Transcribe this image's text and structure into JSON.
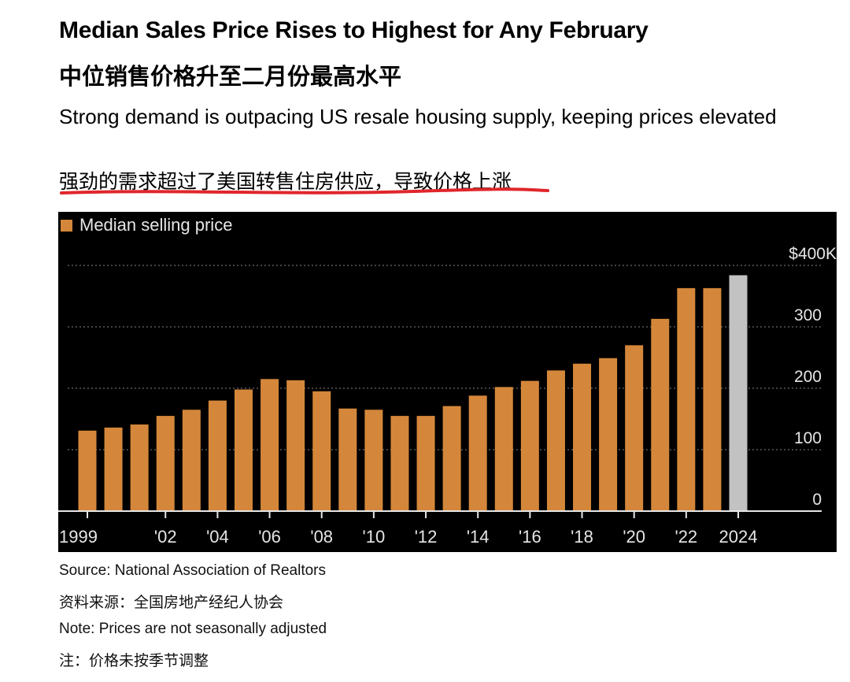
{
  "header": {
    "title": "Median Sales Price Rises to Highest for Any February",
    "title_cn": "中位销售价格升至二月份最高水平",
    "subtitle": "Strong demand is outpacing US resale housing supply, keeping prices elevated",
    "subtitle_cn": "强劲的需求超过了美国转售住房供应，导致价格上涨"
  },
  "legend": {
    "label": "Median selling price"
  },
  "colors": {
    "bar": "#d4873a",
    "bar_highlight": "#c2c2c2",
    "background": "#000000",
    "grid": "#6a6a6a",
    "text": "#e6e6e6",
    "underline": "#e0262b"
  },
  "chart_data": {
    "type": "bar",
    "title": "Median Sales Price Rises to Highest for Any February",
    "ylabel": "",
    "xlabel": "",
    "ylim": [
      0,
      400
    ],
    "yticks": [
      0,
      100,
      200,
      300,
      400
    ],
    "ytick_labels": [
      "0",
      "100",
      "200",
      "300",
      "$400K"
    ],
    "grid": true,
    "legend_position": "top-left",
    "categories": [
      "1999",
      "2000",
      "2001",
      "2002",
      "2003",
      "2004",
      "2005",
      "2006",
      "2007",
      "2008",
      "2009",
      "2010",
      "2011",
      "2012",
      "2013",
      "2014",
      "2015",
      "2016",
      "2017",
      "2018",
      "2019",
      "2020",
      "2021",
      "2022",
      "2023",
      "2024"
    ],
    "xtick_labels": [
      {
        "category": "1999",
        "label": "1999"
      },
      {
        "category": "2002",
        "label": "'02"
      },
      {
        "category": "2004",
        "label": "'04"
      },
      {
        "category": "2006",
        "label": "'06"
      },
      {
        "category": "2008",
        "label": "'08"
      },
      {
        "category": "2010",
        "label": "'10"
      },
      {
        "category": "2012",
        "label": "'12"
      },
      {
        "category": "2014",
        "label": "'14"
      },
      {
        "category": "2016",
        "label": "'16"
      },
      {
        "category": "2018",
        "label": "'18"
      },
      {
        "category": "2020",
        "label": "'20"
      },
      {
        "category": "2022",
        "label": "'22"
      },
      {
        "category": "2024",
        "label": "2024"
      }
    ],
    "series": [
      {
        "name": "Median selling price",
        "values": [
          131,
          136,
          141,
          155,
          165,
          180,
          198,
          215,
          213,
          195,
          167,
          165,
          155,
          155,
          171,
          188,
          202,
          212,
          229,
          240,
          249,
          270,
          313,
          363,
          363,
          384
        ],
        "highlight_last": true
      }
    ]
  },
  "footer": {
    "source": "Source: National Association of Realtors",
    "source_cn": "资料来源：全国房地产经纪人协会",
    "note": "Note: Prices are not seasonally adjusted",
    "note_cn": "注：价格未按季节调整"
  }
}
